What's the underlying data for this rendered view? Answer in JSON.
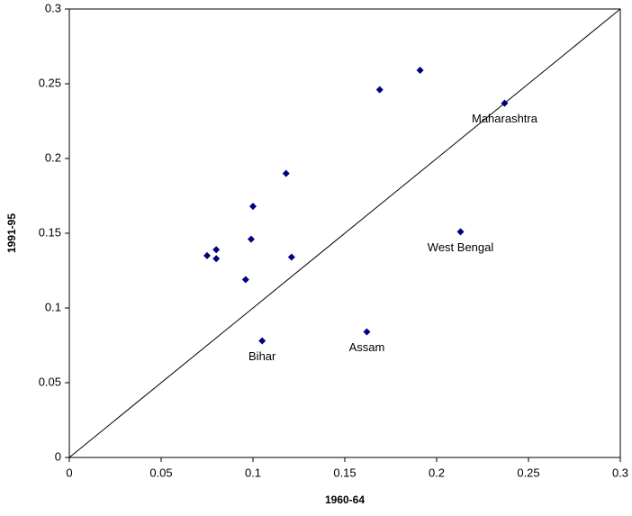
{
  "chart_data": {
    "type": "scatter",
    "x_label": "1960-64",
    "y_label": "1991-95",
    "xlim": [
      0,
      0.3
    ],
    "ylim": [
      0,
      0.3
    ],
    "xticks": [
      0,
      0.05,
      0.1,
      0.15,
      0.2,
      0.25,
      0.3
    ],
    "yticks": [
      0,
      0.05,
      0.1,
      0.15,
      0.2,
      0.25,
      0.3
    ],
    "diagonal": true,
    "color": "#000080",
    "x": [
      0.191,
      0.169,
      0.237,
      0.118,
      0.1,
      0.213,
      0.08,
      0.075,
      0.08,
      0.099,
      0.121,
      0.096,
      0.162,
      0.105
    ],
    "y": [
      0.259,
      0.246,
      0.237,
      0.19,
      0.168,
      0.151,
      0.139,
      0.135,
      0.133,
      0.146,
      0.134,
      0.119,
      0.084,
      0.078
    ],
    "point_labels": [
      null,
      null,
      "Maharashtra",
      null,
      null,
      "West Bengal",
      null,
      null,
      null,
      null,
      null,
      null,
      "Assam",
      "Bihar"
    ]
  }
}
